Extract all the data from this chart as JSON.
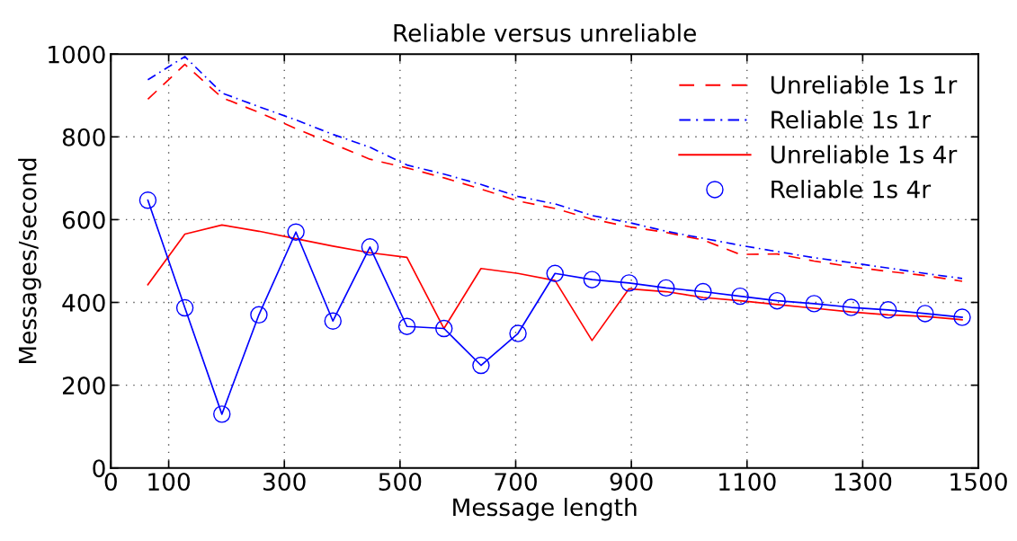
{
  "chart_data": {
    "type": "line",
    "title": "Reliable versus unreliable",
    "xlabel": "Message length",
    "ylabel": "Messages/second",
    "x": [
      64,
      128,
      192,
      256,
      320,
      384,
      448,
      512,
      576,
      640,
      704,
      768,
      832,
      896,
      960,
      1024,
      1088,
      1152,
      1216,
      1280,
      1344,
      1408,
      1472
    ],
    "series": [
      {
        "name": "Unreliable 1s 1r",
        "color": "#ff0000",
        "line_style": "dashed",
        "marker": "none",
        "values": [
          891,
          975,
          895,
          859,
          820,
          783,
          746,
          725,
          701,
          674,
          645,
          627,
          601,
          583,
          569,
          551,
          516,
          517,
          500,
          486,
          475,
          465,
          451
        ]
      },
      {
        "name": "Reliable 1s 1r",
        "color": "#0000ff",
        "line_style": "dashdot",
        "marker": "none",
        "values": [
          938,
          994,
          906,
          873,
          841,
          806,
          775,
          732,
          710,
          685,
          656,
          638,
          610,
          593,
          572,
          555,
          538,
          523,
          508,
          496,
          483,
          470,
          458
        ]
      },
      {
        "name": "Unreliable 1s 4r",
        "color": "#ff0000",
        "line_style": "solid",
        "marker": "none",
        "values": [
          443,
          565,
          587,
          572,
          554,
          536,
          520,
          509,
          337,
          482,
          470,
          453,
          308,
          433,
          426,
          412,
          404,
          395,
          386,
          377,
          370,
          366,
          358
        ]
      },
      {
        "name": "Reliable 1s 4r",
        "color": "#0000ff",
        "line_style": "solid",
        "marker": "circle",
        "values": [
          647,
          387,
          130,
          370,
          570,
          355,
          534,
          342,
          337,
          248,
          325,
          470,
          455,
          447,
          435,
          426,
          415,
          404,
          397,
          388,
          382,
          373,
          364
        ]
      }
    ],
    "xlim": [
      0,
      1500
    ],
    "xticks": [
      0,
      100,
      300,
      500,
      700,
      900,
      1100,
      1300,
      1500
    ],
    "ylim": [
      0,
      1000
    ],
    "yticks": [
      0,
      200,
      400,
      600,
      800,
      1000
    ],
    "grid": true,
    "legend": "top right"
  }
}
